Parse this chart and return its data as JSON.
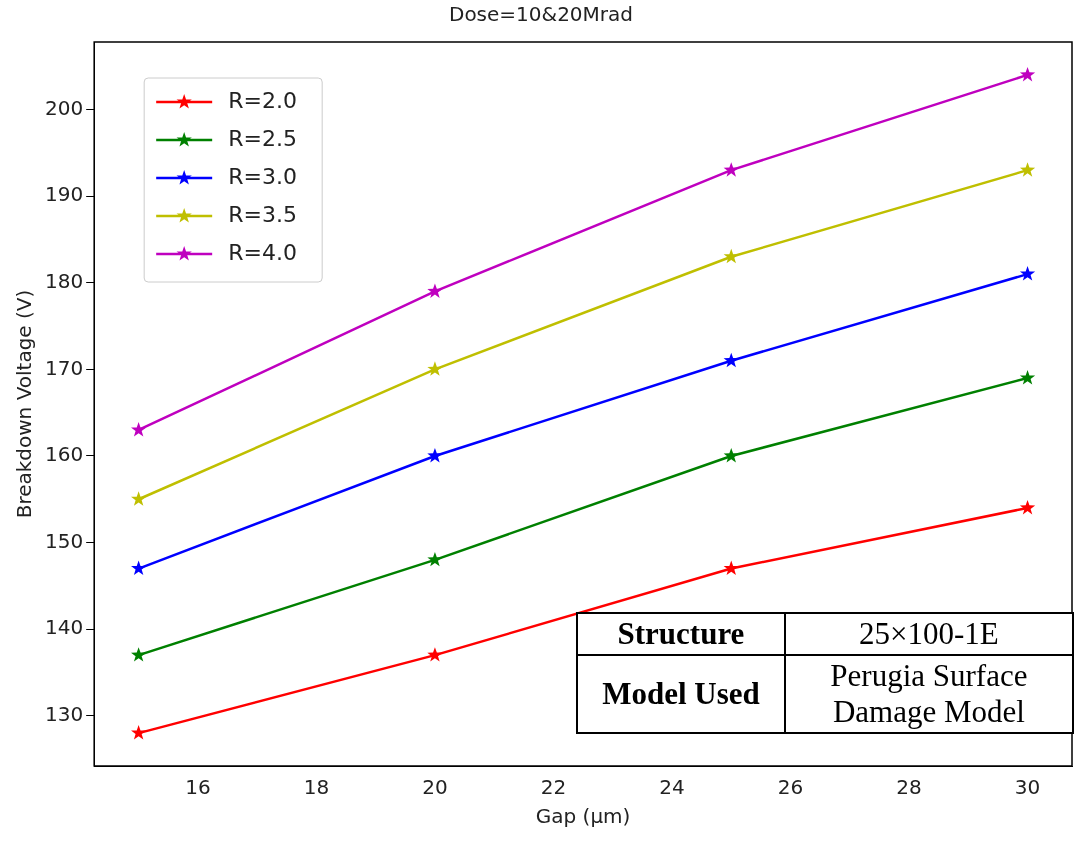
{
  "chart_data": {
    "type": "line",
    "title": "Dose=10&20Mrad",
    "xlabel": "Gap (μm)",
    "ylabel": "Breakdown Voltage (V)",
    "x": [
      15,
      20,
      25,
      30
    ],
    "series": [
      {
        "name": "R=2.0",
        "color": "#ff0000",
        "values": [
          128,
          137,
          147,
          154
        ]
      },
      {
        "name": "R=2.5",
        "color": "#008000",
        "values": [
          137,
          148,
          160,
          169
        ]
      },
      {
        "name": "R=3.0",
        "color": "#0000ff",
        "values": [
          147,
          160,
          171,
          181
        ]
      },
      {
        "name": "R=3.5",
        "color": "#bfbf00",
        "values": [
          155,
          170,
          183,
          193
        ]
      },
      {
        "name": "R=4.0",
        "color": "#bf00bf",
        "values": [
          163,
          179,
          193,
          204
        ]
      }
    ],
    "xlim": [
      14.25,
      30.75
    ],
    "xticks": [
      16,
      18,
      20,
      22,
      24,
      26,
      28,
      30
    ],
    "ylim": [
      124.2,
      207.8
    ],
    "yticks": [
      130,
      140,
      150,
      160,
      170,
      180,
      190,
      200
    ],
    "grid": false,
    "legend": "top left",
    "marker": "star",
    "line_style": "solid",
    "annotations": [
      "Structure",
      "25×100-1E",
      "Model Used",
      "Perugia Surface Damage Model"
    ]
  }
}
